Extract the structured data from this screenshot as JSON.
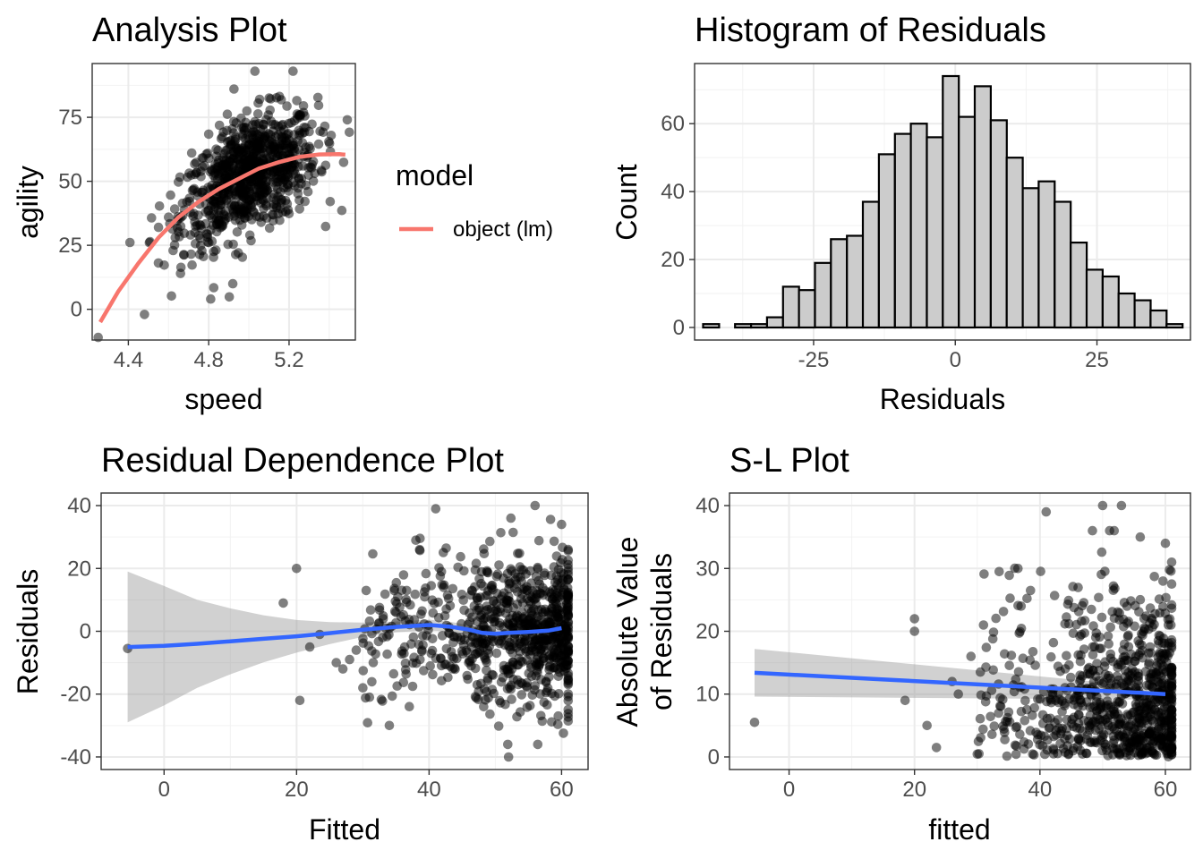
{
  "chart_data": [
    {
      "id": "analysis",
      "type": "scatter",
      "title": "Analysis Plot",
      "xlabel": "speed",
      "ylabel": "agility",
      "xlim": [
        4.22,
        5.53
      ],
      "ylim": [
        -12,
        96
      ],
      "xticks": [
        4.4,
        4.8,
        5.2
      ],
      "xtick_labels": [
        "4.4",
        "4.8",
        "5.2"
      ],
      "yticks": [
        0,
        25,
        50,
        75
      ],
      "ytick_labels": [
        "0",
        "25",
        "50",
        "75"
      ],
      "grid": true,
      "legend": {
        "title": "model",
        "entries": [
          {
            "label": "object (lm)",
            "color": "#F8766D"
          }
        ],
        "position": "right"
      },
      "points": {
        "n": 850,
        "x_mean": 5.0,
        "x_sd": 0.17,
        "color": "#000000",
        "alpha": 0.5,
        "extra": [
          [
            4.25,
            -11
          ],
          [
            4.48,
            -2
          ],
          [
            4.81,
            4
          ],
          [
            4.92,
            10
          ],
          [
            5.03,
            93
          ],
          [
            5.22,
            93
          ],
          [
            5.49,
            74
          ],
          [
            4.66,
            14
          ],
          [
            4.55,
            32
          ],
          [
            4.6,
            36
          ]
        ]
      },
      "series": [
        {
          "name": "object (lm)",
          "color": "#F8766D",
          "x": [
            4.26,
            4.35,
            4.45,
            4.55,
            4.65,
            4.75,
            4.85,
            4.95,
            5.05,
            5.15,
            5.25,
            5.35,
            5.45,
            5.48
          ],
          "y": [
            -5,
            7,
            18,
            28,
            36,
            42,
            47,
            51,
            55,
            57.5,
            59.5,
            60.5,
            60.6,
            60.4
          ]
        }
      ]
    },
    {
      "id": "histogram",
      "type": "bar",
      "title": "Histogram of Residuals",
      "xlabel": "Residuals",
      "ylabel": "Count",
      "xlim": [
        -46,
        41.5
      ],
      "ylim": [
        -3.7,
        77.7
      ],
      "xticks": [
        -25,
        0,
        25
      ],
      "xtick_labels": [
        "-25",
        "0",
        "25"
      ],
      "yticks": [
        0,
        20,
        40,
        60
      ],
      "ytick_labels": [
        "0",
        "20",
        "40",
        "60"
      ],
      "grid": true,
      "bin_width": 2.82,
      "bin_start": -44.5,
      "fill": "#CCCCCC",
      "values": [
        1,
        0,
        1,
        1,
        3,
        12,
        11,
        19,
        26,
        27,
        37,
        51,
        57,
        60,
        56,
        74,
        62,
        71,
        61,
        50,
        41,
        43,
        37,
        25,
        17,
        15,
        10,
        8,
        5,
        1,
        0,
        0,
        2
      ]
    },
    {
      "id": "residual-dependence",
      "type": "scatter",
      "title": "Residual Dependence Plot",
      "xlabel": "Fitted",
      "ylabel": "Residuals",
      "xlim": [
        -9.5,
        64
      ],
      "ylim": [
        -44,
        44
      ],
      "xticks": [
        0,
        20,
        40,
        60
      ],
      "xtick_labels": [
        "0",
        "20",
        "40",
        "60"
      ],
      "yticks": [
        -40,
        -20,
        0,
        20,
        40
      ],
      "ytick_labels": [
        "-40",
        "-20",
        "0",
        "20",
        "40"
      ],
      "grid": true,
      "points": {
        "color": "#000000",
        "alpha": 0.5,
        "extra": [
          [
            -5.5,
            -5.5
          ],
          [
            18,
            9
          ],
          [
            20,
            20
          ],
          [
            20.5,
            -22
          ],
          [
            22,
            -5
          ],
          [
            23.5,
            -1
          ],
          [
            26,
            -10
          ],
          [
            27,
            -12
          ],
          [
            28,
            -9
          ],
          [
            29,
            -6
          ],
          [
            30,
            -18
          ],
          [
            30.5,
            13
          ],
          [
            31,
            -21
          ],
          [
            33,
            -2
          ],
          [
            34,
            -30
          ],
          [
            35,
            6
          ],
          [
            38,
            29
          ],
          [
            41,
            39
          ],
          [
            52,
            -40
          ],
          [
            56,
            40
          ],
          [
            60,
            34
          ]
        ]
      },
      "smooth": {
        "color": "#3366FF",
        "x": [
          -5.5,
          0,
          5,
          10,
          15,
          20,
          25,
          30,
          35,
          40,
          43,
          46,
          48,
          50,
          52,
          55,
          58,
          60
        ],
        "y": [
          -5,
          -4.6,
          -4,
          -3.2,
          -2.4,
          -1.6,
          -0.6,
          0.5,
          1.4,
          2,
          1.5,
          0.5,
          -0.5,
          -0.8,
          -0.5,
          -0.2,
          0.2,
          1
        ],
        "band": [
          24,
          19,
          14,
          10.5,
          7.5,
          5.2,
          3.5,
          2.3,
          1.7,
          1.7,
          1.6,
          1.4,
          1.4,
          1.3,
          1.2,
          1.3,
          1.6,
          2
        ]
      }
    },
    {
      "id": "sl-plot",
      "type": "scatter",
      "title": "S-L Plot",
      "xlabel": "fitted",
      "ylabel": "Absolute Value\nof Residuals",
      "xlim": [
        -9.5,
        64
      ],
      "ylim": [
        -2,
        42
      ],
      "xticks": [
        0,
        20,
        40,
        60
      ],
      "xtick_labels": [
        "0",
        "20",
        "40",
        "60"
      ],
      "yticks": [
        0,
        10,
        20,
        30,
        40
      ],
      "ytick_labels": [
        "0",
        "10",
        "20",
        "30",
        "40"
      ],
      "grid": true,
      "points": {
        "color": "#000000",
        "alpha": 0.5,
        "extra": [
          [
            -5.5,
            5.5
          ],
          [
            18.5,
            9
          ],
          [
            20,
            22
          ],
          [
            20,
            20
          ],
          [
            22,
            5
          ],
          [
            23.5,
            1.5
          ],
          [
            26,
            12
          ],
          [
            27,
            10
          ],
          [
            29,
            16
          ],
          [
            30.5,
            13.5
          ],
          [
            31,
            21
          ],
          [
            33.5,
            29.5
          ],
          [
            37,
            24
          ],
          [
            41,
            39
          ],
          [
            50,
            40
          ],
          [
            53,
            40
          ],
          [
            56,
            35
          ],
          [
            60,
            34
          ],
          [
            38.5,
            26.5
          ],
          [
            36.5,
            30
          ]
        ]
      },
      "smooth": {
        "color": "#3366FF",
        "x": [
          -5.5,
          60
        ],
        "y": [
          13.4,
          10
        ],
        "band_lo": [
          3.8,
          0.9
        ],
        "band_hi": [
          3.8,
          0.9
        ]
      }
    }
  ]
}
